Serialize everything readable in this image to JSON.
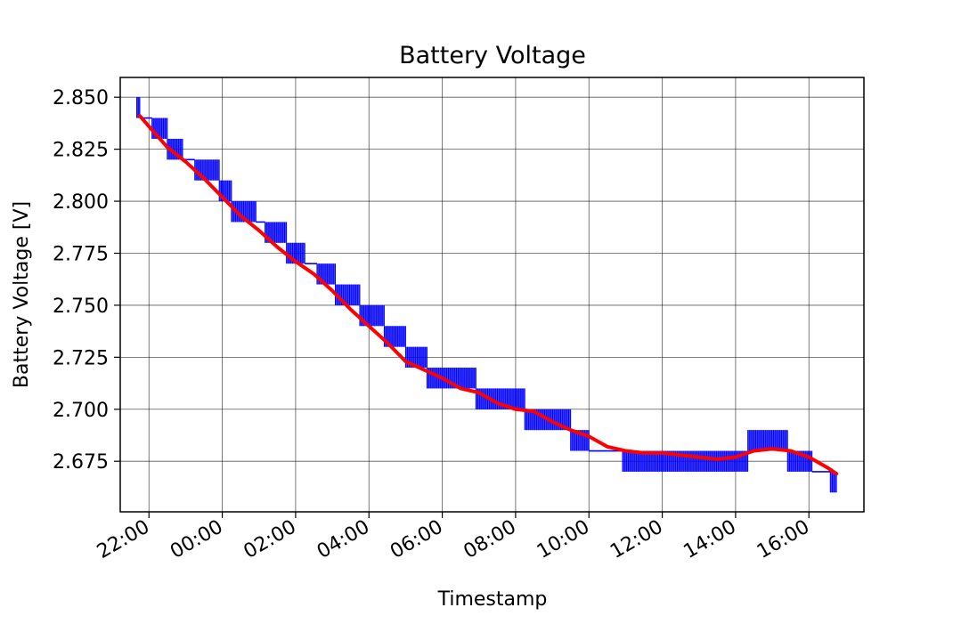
{
  "chart_data": {
    "type": "line",
    "title": "Battery Voltage",
    "xlabel": "Timestamp",
    "ylabel": "Battery Voltage [V]",
    "grid": true,
    "x_ticks": [
      "22:00",
      "00:00",
      "02:00",
      "04:00",
      "06:00",
      "08:00",
      "10:00",
      "12:00",
      "14:00",
      "16:00"
    ],
    "y_ticks": [
      "2.850",
      "2.825",
      "2.800",
      "2.775",
      "2.750",
      "2.725",
      "2.700",
      "2.675"
    ],
    "xlim": [
      "21:13",
      "17:30"
    ],
    "ylim": [
      2.6507,
      2.8595
    ],
    "series": [
      {
        "color": "#0000ff",
        "style": "raw",
        "step_levels": [
          {
            "start": "21:40",
            "end": "21:45",
            "values": [
              2.84,
              2.85
            ]
          },
          {
            "start": "21:45",
            "end": "22:05",
            "values": [
              2.84
            ]
          },
          {
            "start": "22:05",
            "end": "22:30",
            "values": [
              2.83,
              2.84
            ]
          },
          {
            "start": "22:30",
            "end": "22:55",
            "values": [
              2.82,
              2.83
            ]
          },
          {
            "start": "22:55",
            "end": "23:15",
            "values": [
              2.82
            ]
          },
          {
            "start": "23:15",
            "end": "23:55",
            "values": [
              2.81,
              2.82
            ]
          },
          {
            "start": "23:55",
            "end": "00:15",
            "values": [
              2.8,
              2.81
            ]
          },
          {
            "start": "00:15",
            "end": "00:55",
            "values": [
              2.79,
              2.8
            ]
          },
          {
            "start": "00:55",
            "end": "01:10",
            "values": [
              2.79
            ]
          },
          {
            "start": "01:10",
            "end": "01:45",
            "values": [
              2.78,
              2.79
            ]
          },
          {
            "start": "01:45",
            "end": "02:15",
            "values": [
              2.77,
              2.78
            ]
          },
          {
            "start": "02:15",
            "end": "02:35",
            "values": [
              2.77
            ]
          },
          {
            "start": "02:35",
            "end": "03:05",
            "values": [
              2.76,
              2.77
            ]
          },
          {
            "start": "03:05",
            "end": "03:45",
            "values": [
              2.75,
              2.76
            ]
          },
          {
            "start": "03:45",
            "end": "04:25",
            "values": [
              2.74,
              2.75
            ]
          },
          {
            "start": "04:25",
            "end": "05:00",
            "values": [
              2.73,
              2.74
            ]
          },
          {
            "start": "05:00",
            "end": "05:35",
            "values": [
              2.72,
              2.73
            ]
          },
          {
            "start": "05:35",
            "end": "06:55",
            "values": [
              2.71,
              2.72
            ]
          },
          {
            "start": "06:55",
            "end": "08:15",
            "values": [
              2.7,
              2.71
            ]
          },
          {
            "start": "08:15",
            "end": "09:30",
            "values": [
              2.69,
              2.7
            ]
          },
          {
            "start": "09:30",
            "end": "10:00",
            "values": [
              2.68,
              2.69
            ]
          },
          {
            "start": "10:00",
            "end": "10:55",
            "values": [
              2.68
            ]
          },
          {
            "start": "10:55",
            "end": "14:20",
            "values": [
              2.67,
              2.68
            ]
          },
          {
            "start": "14:20",
            "end": "15:25",
            "values": [
              2.68,
              2.69
            ]
          },
          {
            "start": "15:25",
            "end": "16:05",
            "values": [
              2.67,
              2.68
            ]
          },
          {
            "start": "16:05",
            "end": "16:35",
            "values": [
              2.67
            ]
          },
          {
            "start": "16:35",
            "end": "16:45",
            "values": [
              2.66,
              2.67
            ]
          }
        ]
      },
      {
        "color": "#ff0000",
        "style": "smoothed",
        "x": [
          "21:45",
          "22:00",
          "22:30",
          "23:00",
          "23:30",
          "00:00",
          "00:30",
          "01:00",
          "01:30",
          "02:00",
          "02:30",
          "03:00",
          "03:30",
          "04:00",
          "04:30",
          "05:00",
          "05:30",
          "06:00",
          "06:30",
          "07:00",
          "07:30",
          "08:00",
          "08:30",
          "09:00",
          "09:30",
          "10:00",
          "10:30",
          "11:00",
          "11:30",
          "12:00",
          "12:30",
          "13:00",
          "13:30",
          "14:00",
          "14:30",
          "15:00",
          "15:30",
          "16:00",
          "16:30",
          "16:45"
        ],
        "y": [
          2.841,
          2.836,
          2.826,
          2.819,
          2.811,
          2.802,
          2.793,
          2.786,
          2.778,
          2.771,
          2.765,
          2.757,
          2.748,
          2.74,
          2.732,
          2.723,
          2.719,
          2.715,
          2.71,
          2.708,
          2.703,
          2.7,
          2.699,
          2.694,
          2.69,
          2.687,
          2.682,
          2.68,
          2.679,
          2.679,
          2.678,
          2.677,
          2.676,
          2.677,
          2.68,
          2.681,
          2.68,
          2.677,
          2.672,
          2.669
        ]
      }
    ]
  }
}
